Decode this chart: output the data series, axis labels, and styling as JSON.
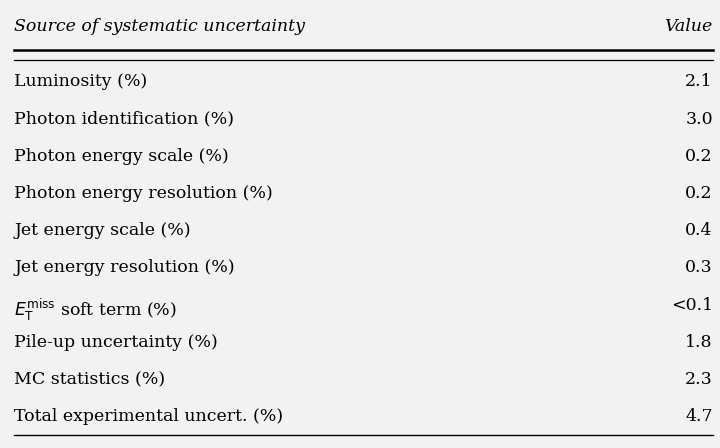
{
  "col_headers": [
    "Source of systematic uncertainty",
    "Value"
  ],
  "rows": [
    [
      "Luminosity (%)",
      "2.1"
    ],
    [
      "Photon identification (%)",
      "3.0"
    ],
    [
      "Photon energy scale (%)",
      "0.2"
    ],
    [
      "Photon energy resolution (%)",
      "0.2"
    ],
    [
      "Jet energy scale (%)",
      "0.4"
    ],
    [
      "Jet energy resolution (%)",
      "0.3"
    ],
    [
      "ET_MISS",
      "<0.1"
    ],
    [
      "Pile-up uncertainty (%)",
      "1.8"
    ],
    [
      "MC statistics (%)",
      "2.3"
    ],
    [
      "Total experimental uncert. (%)",
      "4.7"
    ]
  ],
  "background_color": "#f2f2f2",
  "text_color": "#000000",
  "font_size": 12.5,
  "header_font_size": 12.5
}
